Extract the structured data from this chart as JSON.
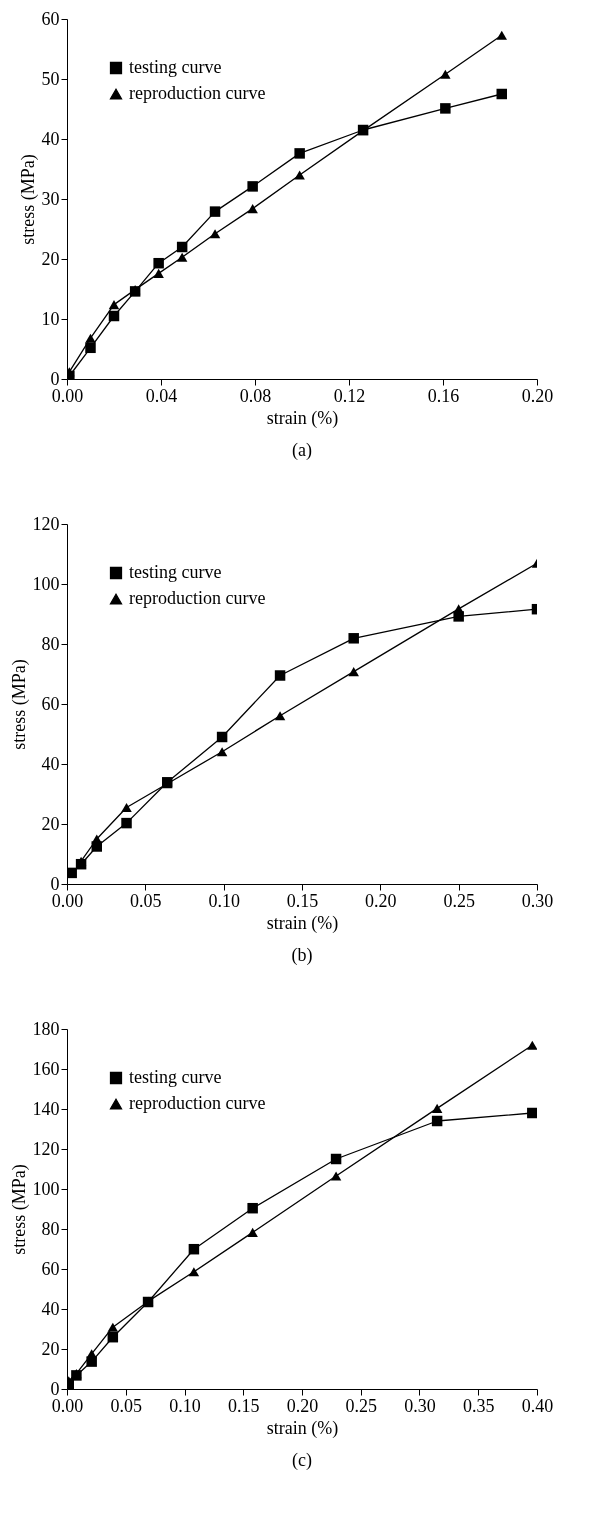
{
  "chart_data": [
    {
      "type": "line",
      "xlabel": "strain (%)",
      "ylabel": "stress (MPa)",
      "xlim": [
        0,
        0.2
      ],
      "xticks": [
        {
          "value": 0,
          "label": "0.00"
        },
        0.04,
        0.08,
        0.12,
        0.16,
        {
          "value": 0.2,
          "label": "0.20"
        }
      ],
      "ylim": [
        0,
        60
      ],
      "yticks": [
        0,
        10,
        20,
        30,
        40,
        50,
        60
      ],
      "legend": "top left",
      "grid": false,
      "annotations": [
        "(a)"
      ],
      "series": [
        {
          "name": "testing curve",
          "color": "#000000",
          "marker": "square",
          "x": [
            0.001,
            0.01,
            0.02,
            0.029,
            0.039,
            0.049,
            0.063,
            0.079,
            0.099,
            0.126,
            0.161,
            0.185
          ],
          "values": [
            0.5,
            5.2,
            10.5,
            14.6,
            19.3,
            22,
            27.9,
            32.1,
            37.6,
            41.5,
            45.1,
            47.5
          ]
        },
        {
          "name": "reproduction curve",
          "color": "#000000",
          "marker": "triangle",
          "x": [
            0.001,
            0.01,
            0.02,
            0.029,
            0.039,
            0.049,
            0.063,
            0.079,
            0.099,
            0.126,
            0.161,
            0.185
          ],
          "values": [
            1.2,
            6.8,
            12.4,
            14.9,
            17.6,
            20.3,
            24.2,
            28.4,
            34,
            41.4,
            50.8,
            57.3
          ]
        }
      ]
    },
    {
      "type": "line",
      "xlabel": "strain (%)",
      "ylabel": "stress (MPa)",
      "xlim": [
        0,
        0.3
      ],
      "xticks": [
        {
          "value": 0,
          "label": "0.00"
        },
        0.05,
        {
          "value": 0.1,
          "label": "0.10"
        },
        0.15,
        {
          "value": 0.2,
          "label": "0.20"
        },
        0.25,
        {
          "value": 0.3,
          "label": "0.30"
        }
      ],
      "ylim": [
        0,
        120
      ],
      "yticks": [
        0,
        20,
        40,
        60,
        80,
        100,
        120
      ],
      "legend": "top left",
      "grid": false,
      "annotations": [
        "(b)"
      ],
      "series": [
        {
          "name": "testing curve",
          "color": "#000000",
          "marker": "square",
          "x": [
            0.003,
            0.009,
            0.019,
            0.038,
            0.064,
            0.099,
            0.136,
            0.183,
            0.25,
            0.3
          ],
          "values": [
            3.7,
            6.6,
            12.5,
            20.3,
            33.9,
            49,
            69.5,
            81.9,
            89.2,
            91.6
          ]
        },
        {
          "name": "reproduction curve",
          "color": "#000000",
          "marker": "triangle",
          "x": [
            0.009,
            0.019,
            0.038,
            0.064,
            0.099,
            0.136,
            0.183,
            0.25,
            0.3
          ],
          "values": [
            7.6,
            15,
            25.5,
            33.4,
            44.1,
            56.1,
            70.8,
            91.7,
            106.9
          ]
        }
      ]
    },
    {
      "type": "line",
      "xlabel": "strain (%)",
      "ylabel": "stress (MPa)",
      "xlim": [
        0,
        0.4
      ],
      "xticks": [
        {
          "value": 0,
          "label": "0.00"
        },
        0.05,
        {
          "value": 0.1,
          "label": "0.10"
        },
        0.15,
        {
          "value": 0.2,
          "label": "0.20"
        },
        0.25,
        {
          "value": 0.3,
          "label": "0.30"
        },
        0.35,
        {
          "value": 0.4,
          "label": "0.40"
        }
      ],
      "ylim": [
        0,
        180
      ],
      "yticks": [
        0,
        20,
        40,
        60,
        80,
        100,
        120,
        140,
        160,
        180
      ],
      "legend": "top left",
      "grid": false,
      "annotations": [
        "(c)"
      ],
      "series": [
        {
          "name": "testing curve",
          "color": "#000000",
          "marker": "square",
          "x": [
            0.0015,
            0.008,
            0.021,
            0.039,
            0.069,
            0.108,
            0.158,
            0.229,
            0.315,
            0.396
          ],
          "values": [
            2.3,
            6.8,
            13.7,
            25.9,
            43.5,
            69.9,
            90.4,
            115,
            134,
            138
          ]
        },
        {
          "name": "reproduction curve",
          "color": "#000000",
          "marker": "triangle",
          "x": [
            0.0015,
            0.008,
            0.021,
            0.039,
            0.069,
            0.108,
            0.158,
            0.229,
            0.315,
            0.396
          ],
          "values": [
            4.1,
            7.7,
            17.6,
            30.9,
            43.8,
            58.6,
            78.3,
            106.5,
            140.3,
            171.9
          ]
        }
      ]
    }
  ]
}
